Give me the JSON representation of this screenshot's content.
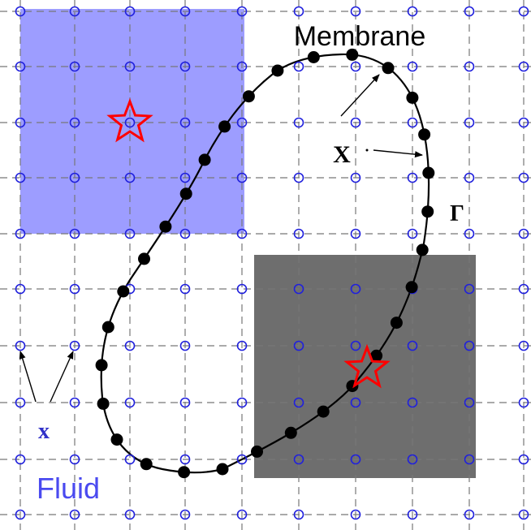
{
  "labels": {
    "membrane": "Membrane",
    "fluid": "Fluid",
    "lagrangian_point": "X",
    "eulerian_point": "x",
    "boundary": "Γ"
  },
  "colors": {
    "grid_line": "#777777",
    "grid_node": "#2020dd",
    "fluid_label": "#4a4af0",
    "blue_region": "#8c8cff",
    "gray_region": "#6e6e6e",
    "star": "#ff0000",
    "membrane_curve": "#000000",
    "membrane_point": "#000000"
  },
  "icons": {
    "support_marker": "star-icon"
  }
}
